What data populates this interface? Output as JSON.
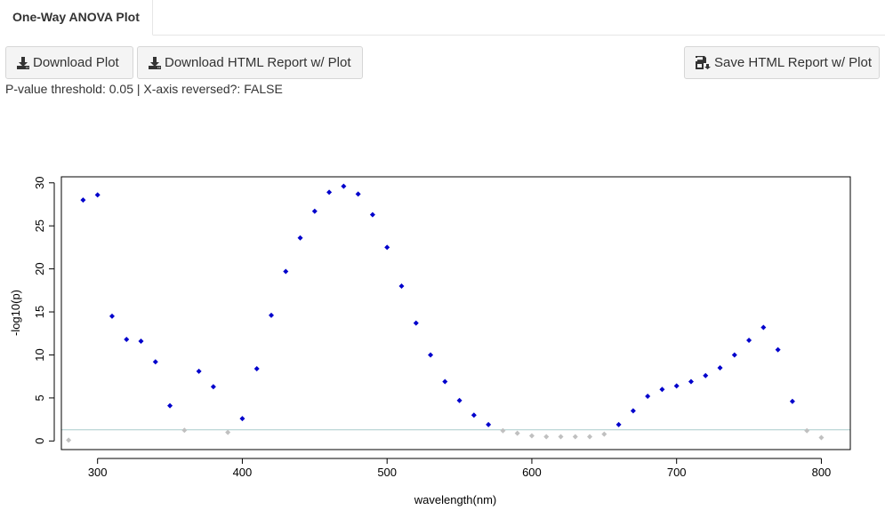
{
  "tab": {
    "label": "One-Way ANOVA Plot"
  },
  "toolbar": {
    "download_plot_label": "Download Plot",
    "download_report_label": "Download HTML Report w/ Plot",
    "save_report_label": "Save HTML Report w/ Plot"
  },
  "status": {
    "text": "P-value threshold: 0.05 | X-axis reversed?: FALSE"
  },
  "colors": {
    "significant": "#0000cc",
    "not_significant": "#c0c0c0",
    "threshold_line": "#a9cccc"
  },
  "chart_data": {
    "type": "scatter",
    "xlabel": "wavelength(nm)",
    "ylabel": "-log10(p)",
    "xlim": [
      275,
      820
    ],
    "ylim": [
      -1,
      30.7
    ],
    "x_ticks": [
      300,
      400,
      500,
      600,
      700,
      800
    ],
    "y_ticks": [
      0,
      5,
      10,
      15,
      20,
      25,
      30
    ],
    "threshold": 1.301,
    "points": [
      {
        "x": 280,
        "y": 0.1,
        "significant": false
      },
      {
        "x": 290,
        "y": 28.0,
        "significant": true
      },
      {
        "x": 300,
        "y": 28.6,
        "significant": true
      },
      {
        "x": 310,
        "y": 14.5,
        "significant": true
      },
      {
        "x": 320,
        "y": 11.8,
        "significant": true
      },
      {
        "x": 330,
        "y": 11.6,
        "significant": true
      },
      {
        "x": 340,
        "y": 9.2,
        "significant": true
      },
      {
        "x": 350,
        "y": 4.1,
        "significant": true
      },
      {
        "x": 360,
        "y": 1.25,
        "significant": false
      },
      {
        "x": 370,
        "y": 8.1,
        "significant": true
      },
      {
        "x": 380,
        "y": 6.3,
        "significant": true
      },
      {
        "x": 390,
        "y": 1.0,
        "significant": false
      },
      {
        "x": 400,
        "y": 2.6,
        "significant": true
      },
      {
        "x": 410,
        "y": 8.4,
        "significant": true
      },
      {
        "x": 420,
        "y": 14.6,
        "significant": true
      },
      {
        "x": 430,
        "y": 19.7,
        "significant": true
      },
      {
        "x": 440,
        "y": 23.6,
        "significant": true
      },
      {
        "x": 450,
        "y": 26.7,
        "significant": true
      },
      {
        "x": 460,
        "y": 28.9,
        "significant": true
      },
      {
        "x": 470,
        "y": 29.6,
        "significant": true
      },
      {
        "x": 480,
        "y": 28.7,
        "significant": true
      },
      {
        "x": 490,
        "y": 26.3,
        "significant": true
      },
      {
        "x": 500,
        "y": 22.5,
        "significant": true
      },
      {
        "x": 510,
        "y": 18.0,
        "significant": true
      },
      {
        "x": 520,
        "y": 13.7,
        "significant": true
      },
      {
        "x": 530,
        "y": 10.0,
        "significant": true
      },
      {
        "x": 540,
        "y": 6.9,
        "significant": true
      },
      {
        "x": 550,
        "y": 4.7,
        "significant": true
      },
      {
        "x": 560,
        "y": 3.0,
        "significant": true
      },
      {
        "x": 570,
        "y": 1.9,
        "significant": true
      },
      {
        "x": 580,
        "y": 1.2,
        "significant": false
      },
      {
        "x": 590,
        "y": 0.9,
        "significant": false
      },
      {
        "x": 600,
        "y": 0.6,
        "significant": false
      },
      {
        "x": 610,
        "y": 0.5,
        "significant": false
      },
      {
        "x": 620,
        "y": 0.5,
        "significant": false
      },
      {
        "x": 630,
        "y": 0.5,
        "significant": false
      },
      {
        "x": 640,
        "y": 0.5,
        "significant": false
      },
      {
        "x": 650,
        "y": 0.8,
        "significant": false
      },
      {
        "x": 660,
        "y": 1.9,
        "significant": true
      },
      {
        "x": 670,
        "y": 3.5,
        "significant": true
      },
      {
        "x": 680,
        "y": 5.2,
        "significant": true
      },
      {
        "x": 690,
        "y": 6.0,
        "significant": true
      },
      {
        "x": 700,
        "y": 6.4,
        "significant": true
      },
      {
        "x": 710,
        "y": 6.9,
        "significant": true
      },
      {
        "x": 720,
        "y": 7.6,
        "significant": true
      },
      {
        "x": 730,
        "y": 8.5,
        "significant": true
      },
      {
        "x": 740,
        "y": 10.0,
        "significant": true
      },
      {
        "x": 750,
        "y": 11.7,
        "significant": true
      },
      {
        "x": 760,
        "y": 13.2,
        "significant": true
      },
      {
        "x": 770,
        "y": 10.6,
        "significant": true
      },
      {
        "x": 780,
        "y": 4.6,
        "significant": true
      },
      {
        "x": 790,
        "y": 1.2,
        "significant": false
      },
      {
        "x": 800,
        "y": 0.4,
        "significant": false
      }
    ]
  }
}
